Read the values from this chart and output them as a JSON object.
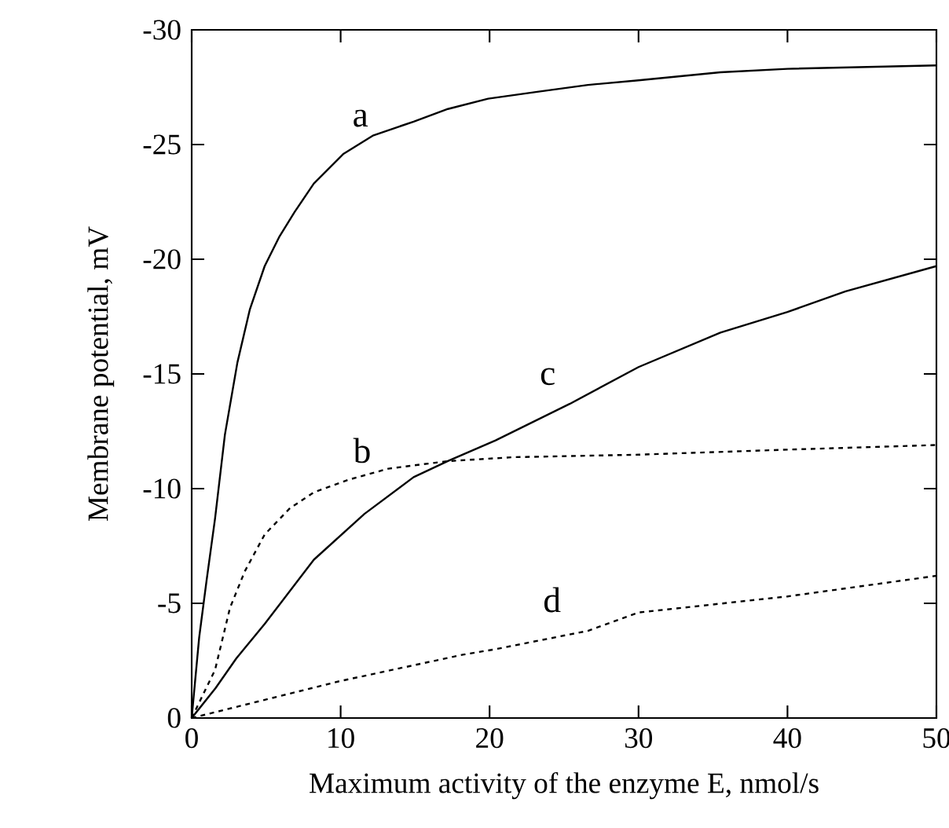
{
  "chart_data": {
    "type": "line",
    "xlabel": "Maximum activity of the enzyme E,  nmol/s",
    "ylabel": "Membrane potential,  mV",
    "xlim": [
      0,
      50
    ],
    "ylim": [
      0,
      -30
    ],
    "xticks": [
      0,
      10,
      20,
      30,
      40,
      50
    ],
    "yticks": [
      0,
      -5,
      -10,
      -15,
      -20,
      -25,
      -30
    ],
    "grid": false,
    "legend": false,
    "marker": "none",
    "series": [
      {
        "name": "a",
        "color": "#000000",
        "line_style": "solid",
        "x": [
          0,
          0.5,
          1,
          1.57,
          2.23,
          3.07,
          3.9,
          4.9,
          5.9,
          6.9,
          8.2,
          10.2,
          12.2,
          14.9,
          17.2,
          19.9,
          23.2,
          26.6,
          30,
          35.5,
          40,
          50
        ],
        "values": [
          0,
          -3.5,
          -6,
          -8.7,
          -12.35,
          -15.5,
          -17.8,
          -19.7,
          -21,
          -22.05,
          -23.3,
          -24.6,
          -25.4,
          -26,
          -26.55,
          -27,
          -27.3,
          -27.6,
          -27.8,
          -28.15,
          -28.3,
          -28.45
        ]
      },
      {
        "name": "b",
        "color": "#000000",
        "line_style": "dotted",
        "x": [
          0,
          1.57,
          2.57,
          3.57,
          4.9,
          6.6,
          8.2,
          10.6,
          13.2,
          17.2,
          21.6,
          30,
          40,
          50
        ],
        "values": [
          0,
          -2.1,
          -4.8,
          -6.4,
          -8,
          -9.15,
          -9.84,
          -10.4,
          -10.87,
          -11.2,
          -11.37,
          -11.48,
          -11.7,
          -11.9
        ]
      },
      {
        "name": "c",
        "color": "#000000",
        "line_style": "solid",
        "x": [
          0,
          1.6,
          3,
          4.9,
          8.2,
          11.6,
          14.9,
          17.2,
          20.4,
          25.4,
          30,
          35.5,
          40,
          43.9,
          50
        ],
        "values": [
          0,
          -1.3,
          -2.6,
          -4.1,
          -6.9,
          -8.9,
          -10.5,
          -11.2,
          -12.1,
          -13.7,
          -15.3,
          -16.8,
          -17.7,
          -18.6,
          -19.7
        ]
      },
      {
        "name": "d",
        "color": "#000000",
        "line_style": "dotted",
        "x": [
          0,
          9.9,
          18.2,
          20.4,
          26.6,
          30,
          40,
          50
        ],
        "values": [
          0,
          -1.6,
          -2.76,
          -3,
          -3.8,
          -4.6,
          -5.3,
          -6.2
        ]
      }
    ]
  }
}
